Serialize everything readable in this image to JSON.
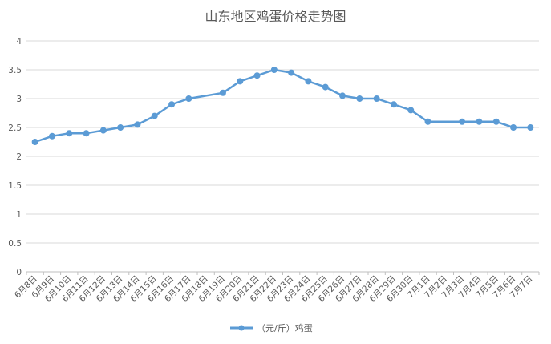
{
  "chart_data": {
    "type": "line",
    "title": "山东地区鸡蛋价格走势图",
    "xlabel": "",
    "ylabel": "",
    "ylim": [
      0,
      4
    ],
    "yticks": [
      "0",
      "0.5",
      "1",
      "1.5",
      "2",
      "2.5",
      "3",
      "3.5",
      "4"
    ],
    "categories": [
      "6月8日",
      "6月9日",
      "6月10日",
      "6月11日",
      "6月12日",
      "6月13日",
      "6月14日",
      "6月15日",
      "6月16日",
      "6月17日",
      "6月18日",
      "6月19日",
      "6月20日",
      "6月21日",
      "6月22日",
      "6月23日",
      "6月24日",
      "6月25日",
      "6月26日",
      "6月27日",
      "6月28日",
      "6月29日",
      "6月30日",
      "7月1日",
      "7月2日",
      "7月3日",
      "7月4日",
      "7月5日",
      "7月6日",
      "7月7日"
    ],
    "series": [
      {
        "name": "（元/斤）鸡蛋",
        "color": "#5b9bd5",
        "values": [
          2.25,
          2.35,
          2.4,
          2.4,
          2.45,
          2.5,
          2.55,
          2.7,
          2.9,
          3.0,
          null,
          3.1,
          3.3,
          3.4,
          3.5,
          3.45,
          3.3,
          3.2,
          3.05,
          3.0,
          3.0,
          2.9,
          2.8,
          2.6,
          null,
          2.6,
          2.6,
          2.6,
          2.5,
          2.5
        ]
      }
    ],
    "grid": true,
    "legend": "bottom"
  }
}
